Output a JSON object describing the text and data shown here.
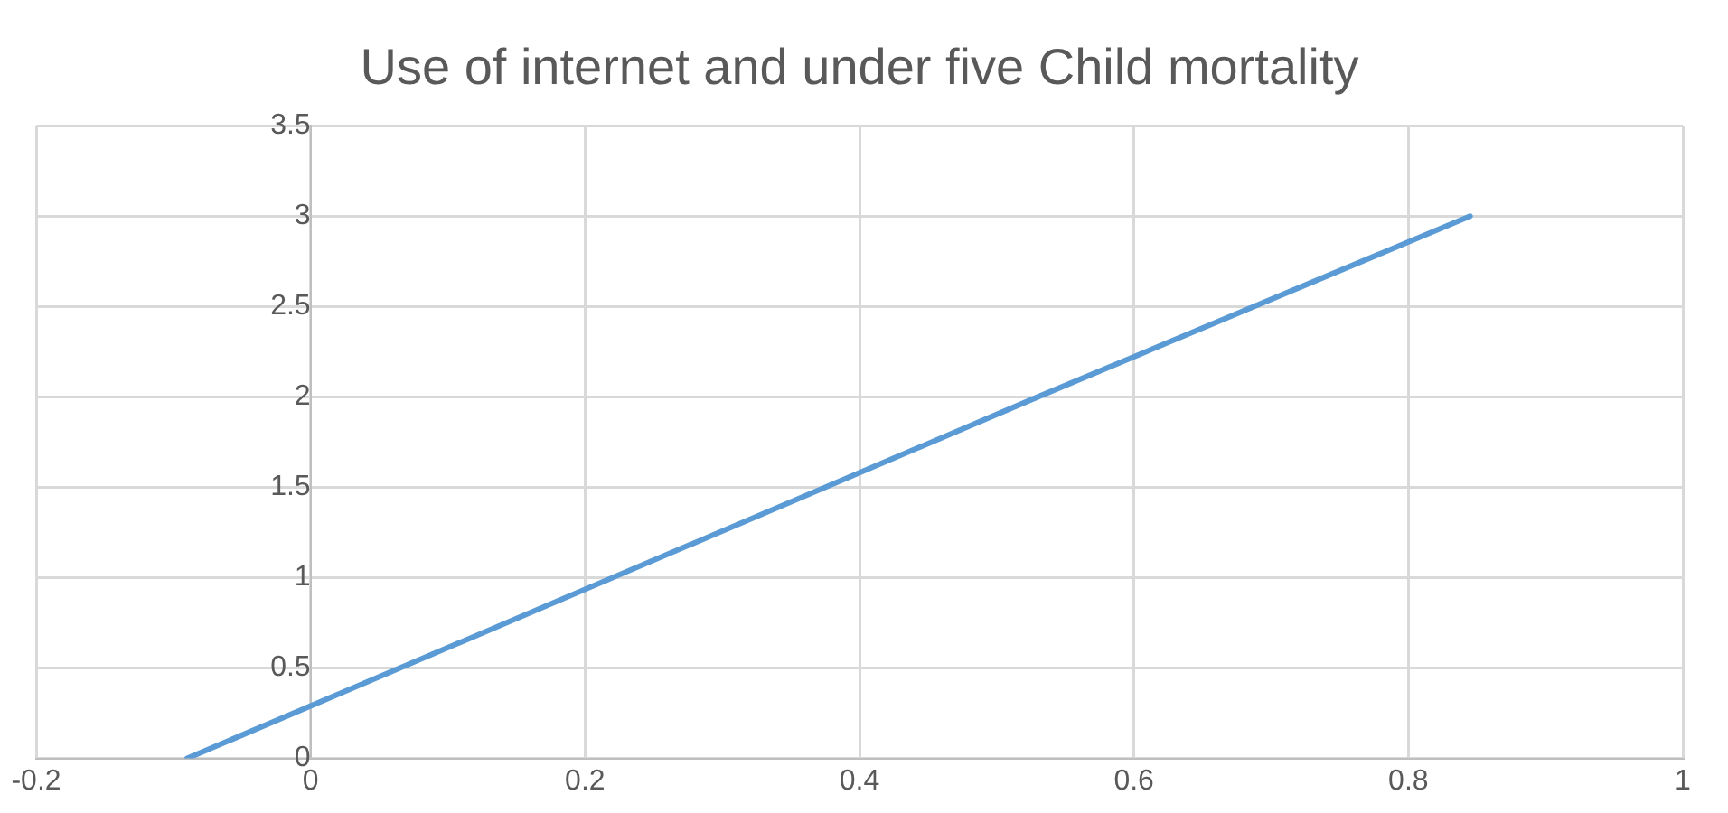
{
  "chart_data": {
    "type": "line",
    "title": "Use of internet and under five Child mortality",
    "x": [
      -0.09,
      0.22,
      0.53,
      0.845
    ],
    "series": [
      {
        "color": "#5b9bd5",
        "values": [
          0,
          1,
          2,
          3
        ]
      }
    ],
    "xlim": [
      -0.2,
      1
    ],
    "xticks": [
      -0.2,
      0,
      0.2,
      0.4,
      0.6,
      0.8,
      1
    ],
    "ylim": [
      0,
      3.5
    ],
    "yticks": [
      0,
      0.5,
      1,
      1.5,
      2,
      2.5,
      3,
      3.5
    ],
    "grid": true,
    "legend": false,
    "marker": "none",
    "line_style": "solid"
  }
}
